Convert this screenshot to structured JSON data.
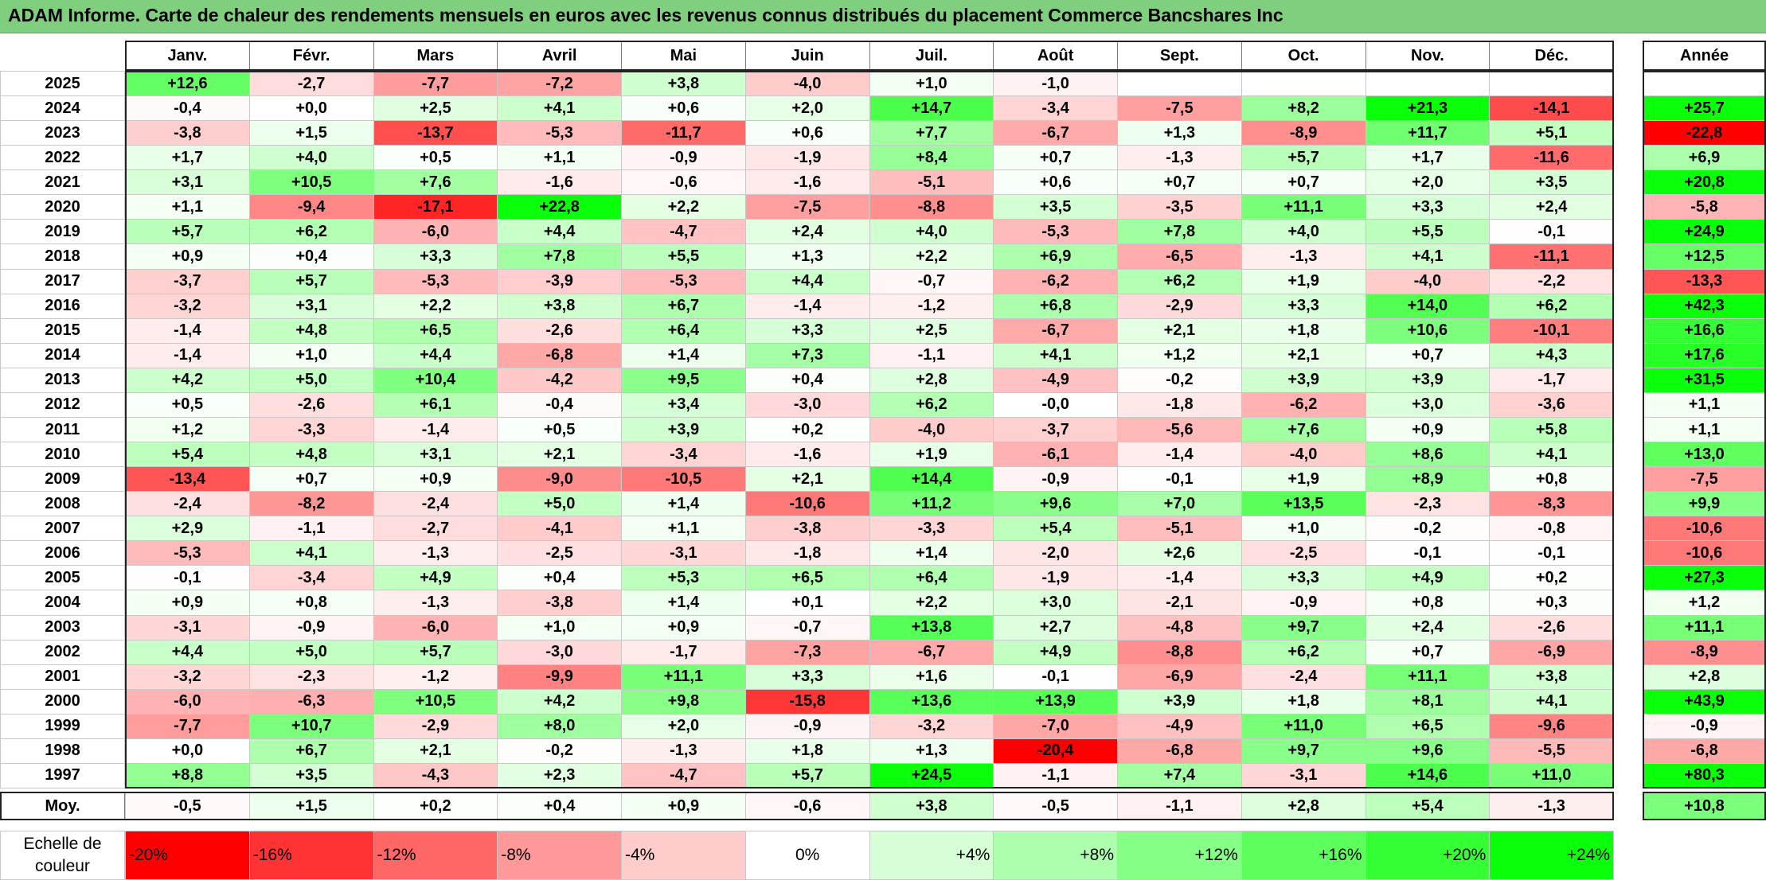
{
  "title": "ADAM Informe. Carte de chaleur des rendements mensuels en euros avec les revenus connus distribués du placement Commerce Bancshares Inc",
  "chart_data": {
    "type": "heatmap",
    "columns": [
      "Janv.",
      "Févr.",
      "Mars",
      "Avril",
      "Mai",
      "Juin",
      "Juil.",
      "Août",
      "Sept.",
      "Oct.",
      "Nov.",
      "Déc."
    ],
    "year_column_label": "Année",
    "rows": [
      {
        "year": "2025",
        "values": [
          "+12,6",
          "-2,7",
          "-7,7",
          "-7,2",
          "+3,8",
          "-4,0",
          "+1,0",
          "-1,0",
          "",
          "",
          "",
          ""
        ],
        "annual": ""
      },
      {
        "year": "2024",
        "values": [
          "-0,4",
          "+0,0",
          "+2,5",
          "+4,1",
          "+0,6",
          "+2,0",
          "+14,7",
          "-3,4",
          "-7,5",
          "+8,2",
          "+21,3",
          "-14,1"
        ],
        "annual": "+25,7"
      },
      {
        "year": "2023",
        "values": [
          "-3,8",
          "+1,5",
          "-13,7",
          "-5,3",
          "-11,7",
          "+0,6",
          "+7,7",
          "-6,7",
          "+1,3",
          "-8,9",
          "+11,7",
          "+5,1"
        ],
        "annual": "-22,8"
      },
      {
        "year": "2022",
        "values": [
          "+1,7",
          "+4,0",
          "+0,5",
          "+1,1",
          "-0,9",
          "-1,9",
          "+8,4",
          "+0,7",
          "-1,3",
          "+5,7",
          "+1,7",
          "-11,6"
        ],
        "annual": "+6,9"
      },
      {
        "year": "2021",
        "values": [
          "+3,1",
          "+10,5",
          "+7,6",
          "-1,6",
          "-0,6",
          "-1,6",
          "-5,1",
          "+0,6",
          "+0,7",
          "+0,7",
          "+2,0",
          "+3,5"
        ],
        "annual": "+20,8"
      },
      {
        "year": "2020",
        "values": [
          "+1,1",
          "-9,4",
          "-17,1",
          "+22,8",
          "+2,2",
          "-7,5",
          "-8,8",
          "+3,5",
          "-3,5",
          "+11,1",
          "+3,3",
          "+2,4"
        ],
        "annual": "-5,8"
      },
      {
        "year": "2019",
        "values": [
          "+5,7",
          "+6,2",
          "-6,0",
          "+4,4",
          "-4,7",
          "+2,4",
          "+4,0",
          "-5,3",
          "+7,8",
          "+4,0",
          "+5,5",
          "-0,1"
        ],
        "annual": "+24,9"
      },
      {
        "year": "2018",
        "values": [
          "+0,9",
          "+0,4",
          "+3,3",
          "+7,8",
          "+5,5",
          "+1,3",
          "+2,2",
          "+6,9",
          "-6,5",
          "-1,3",
          "+4,1",
          "-11,1"
        ],
        "annual": "+12,5"
      },
      {
        "year": "2017",
        "values": [
          "-3,7",
          "+5,7",
          "-5,3",
          "-3,9",
          "-5,3",
          "+4,4",
          "-0,7",
          "-6,2",
          "+6,2",
          "+1,9",
          "-4,0",
          "-2,2"
        ],
        "annual": "-13,3"
      },
      {
        "year": "2016",
        "values": [
          "-3,2",
          "+3,1",
          "+2,2",
          "+3,8",
          "+6,7",
          "-1,4",
          "-1,2",
          "+6,8",
          "-2,9",
          "+3,3",
          "+14,0",
          "+6,2"
        ],
        "annual": "+42,3"
      },
      {
        "year": "2015",
        "values": [
          "-1,4",
          "+4,8",
          "+6,5",
          "-2,6",
          "+6,4",
          "+3,3",
          "+2,5",
          "-6,7",
          "+2,1",
          "+1,8",
          "+10,6",
          "-10,1"
        ],
        "annual": "+16,6"
      },
      {
        "year": "2014",
        "values": [
          "-1,4",
          "+1,0",
          "+4,4",
          "-6,8",
          "+1,4",
          "+7,3",
          "-1,1",
          "+4,1",
          "+1,2",
          "+2,1",
          "+0,7",
          "+4,3"
        ],
        "annual": "+17,6"
      },
      {
        "year": "2013",
        "values": [
          "+4,2",
          "+5,0",
          "+10,4",
          "-4,2",
          "+9,5",
          "+0,4",
          "+2,8",
          "-4,9",
          "-0,2",
          "+3,9",
          "+3,9",
          "-1,7"
        ],
        "annual": "+31,5"
      },
      {
        "year": "2012",
        "values": [
          "+0,5",
          "-2,6",
          "+6,1",
          "-0,4",
          "+3,4",
          "-3,0",
          "+6,2",
          "-0,0",
          "-1,8",
          "-6,2",
          "+3,0",
          "-3,6"
        ],
        "annual": "+1,1"
      },
      {
        "year": "2011",
        "values": [
          "+1,2",
          "-3,3",
          "-1,4",
          "+0,5",
          "+3,9",
          "+0,2",
          "-4,0",
          "-3,7",
          "-5,6",
          "+7,6",
          "+0,9",
          "+5,8"
        ],
        "annual": "+1,1"
      },
      {
        "year": "2010",
        "values": [
          "+5,4",
          "+4,8",
          "+3,1",
          "+2,1",
          "-3,4",
          "-1,6",
          "+1,9",
          "-6,1",
          "-1,4",
          "-4,0",
          "+8,6",
          "+4,1"
        ],
        "annual": "+13,0"
      },
      {
        "year": "2009",
        "values": [
          "-13,4",
          "+0,7",
          "+0,9",
          "-9,0",
          "-10,5",
          "+2,1",
          "+14,4",
          "-0,9",
          "-0,1",
          "+1,9",
          "+8,9",
          "+0,8"
        ],
        "annual": "-7,5"
      },
      {
        "year": "2008",
        "values": [
          "-2,4",
          "-8,2",
          "-2,4",
          "+5,0",
          "+1,4",
          "-10,6",
          "+11,2",
          "+9,6",
          "+7,0",
          "+13,5",
          "-2,3",
          "-8,3"
        ],
        "annual": "+9,9"
      },
      {
        "year": "2007",
        "values": [
          "+2,9",
          "-1,1",
          "-2,7",
          "-4,1",
          "+1,1",
          "-3,8",
          "-3,3",
          "+5,4",
          "-5,1",
          "+1,0",
          "-0,2",
          "-0,8"
        ],
        "annual": "-10,6"
      },
      {
        "year": "2006",
        "values": [
          "-5,3",
          "+4,1",
          "-1,3",
          "-2,5",
          "-3,1",
          "-1,8",
          "+1,4",
          "-2,0",
          "+2,6",
          "-2,5",
          "-0,1",
          "-0,1"
        ],
        "annual": "-10,6"
      },
      {
        "year": "2005",
        "values": [
          "-0,1",
          "-3,4",
          "+4,9",
          "+0,4",
          "+5,3",
          "+6,5",
          "+6,4",
          "-1,9",
          "-1,4",
          "+3,3",
          "+4,9",
          "+0,2"
        ],
        "annual": "+27,3"
      },
      {
        "year": "2004",
        "values": [
          "+0,9",
          "+0,8",
          "-1,3",
          "-3,8",
          "+1,4",
          "+0,1",
          "+2,2",
          "+3,0",
          "-2,1",
          "-0,9",
          "+0,8",
          "+0,3"
        ],
        "annual": "+1,2"
      },
      {
        "year": "2003",
        "values": [
          "-3,1",
          "-0,9",
          "-6,0",
          "+1,0",
          "+0,9",
          "-0,7",
          "+13,8",
          "+2,7",
          "-4,8",
          "+9,7",
          "+2,4",
          "-2,6"
        ],
        "annual": "+11,1"
      },
      {
        "year": "2002",
        "values": [
          "+4,4",
          "+5,0",
          "+5,7",
          "-3,0",
          "-1,7",
          "-7,3",
          "-6,7",
          "+4,9",
          "-8,8",
          "+6,2",
          "+0,7",
          "-6,9"
        ],
        "annual": "-8,9"
      },
      {
        "year": "2001",
        "values": [
          "-3,2",
          "-2,3",
          "-1,2",
          "-9,9",
          "+11,1",
          "+3,3",
          "+1,6",
          "-0,1",
          "-6,9",
          "-2,4",
          "+11,1",
          "+3,8"
        ],
        "annual": "+2,8"
      },
      {
        "year": "2000",
        "values": [
          "-6,0",
          "-6,3",
          "+10,5",
          "+4,2",
          "+9,8",
          "-15,8",
          "+13,6",
          "+13,9",
          "+3,9",
          "+1,8",
          "+8,1",
          "+4,1"
        ],
        "annual": "+43,9"
      },
      {
        "year": "1999",
        "values": [
          "-7,7",
          "+10,7",
          "-2,9",
          "+8,0",
          "+2,0",
          "-0,9",
          "-3,2",
          "-7,0",
          "-4,9",
          "+11,0",
          "+6,5",
          "-9,6"
        ],
        "annual": "-0,9"
      },
      {
        "year": "1998",
        "values": [
          "+0,0",
          "+6,7",
          "+2,1",
          "-0,2",
          "-1,3",
          "+1,8",
          "+1,3",
          "-20,4",
          "-6,8",
          "+9,7",
          "+9,6",
          "-5,5"
        ],
        "annual": "-6,8"
      },
      {
        "year": "1997",
        "values": [
          "+8,8",
          "+3,5",
          "-4,3",
          "+2,3",
          "-4,7",
          "+5,7",
          "+24,5",
          "-1,1",
          "+7,4",
          "-3,1",
          "+14,6",
          "+11,0"
        ],
        "annual": "+80,3"
      }
    ],
    "average": {
      "label": "Moy.",
      "values": [
        "-0,5",
        "+1,5",
        "+0,2",
        "+0,4",
        "+0,9",
        "-0,6",
        "+3,8",
        "-0,5",
        "-1,1",
        "+2,8",
        "+5,4",
        "-1,3"
      ],
      "annual": "+10,8"
    },
    "color_scale": {
      "label_line1": "Echelle de",
      "label_line2": "couleur",
      "steps": [
        {
          "label": "-20%",
          "value": -20,
          "color": "#ff0000"
        },
        {
          "label": "-16%",
          "value": -16,
          "color": "#ff3333"
        },
        {
          "label": "-12%",
          "value": -12,
          "color": "#ff6666"
        },
        {
          "label": "-8%",
          "value": -8,
          "color": "#ff9999"
        },
        {
          "label": "-4%",
          "value": -4,
          "color": "#ffcccc"
        },
        {
          "label": "0%",
          "value": 0,
          "color": "#ffffff"
        },
        {
          "label": "+4%",
          "value": 4,
          "color": "#d6ffd6"
        },
        {
          "label": "+8%",
          "value": 8,
          "color": "#adffad"
        },
        {
          "label": "+12%",
          "value": 12,
          "color": "#85ff85"
        },
        {
          "label": "+16%",
          "value": 16,
          "color": "#5cff5c"
        },
        {
          "label": "+20%",
          "value": 20,
          "color": "#33ff33"
        },
        {
          "label": "+24%",
          "value": 24,
          "color": "#0aff0a"
        }
      ]
    }
  }
}
